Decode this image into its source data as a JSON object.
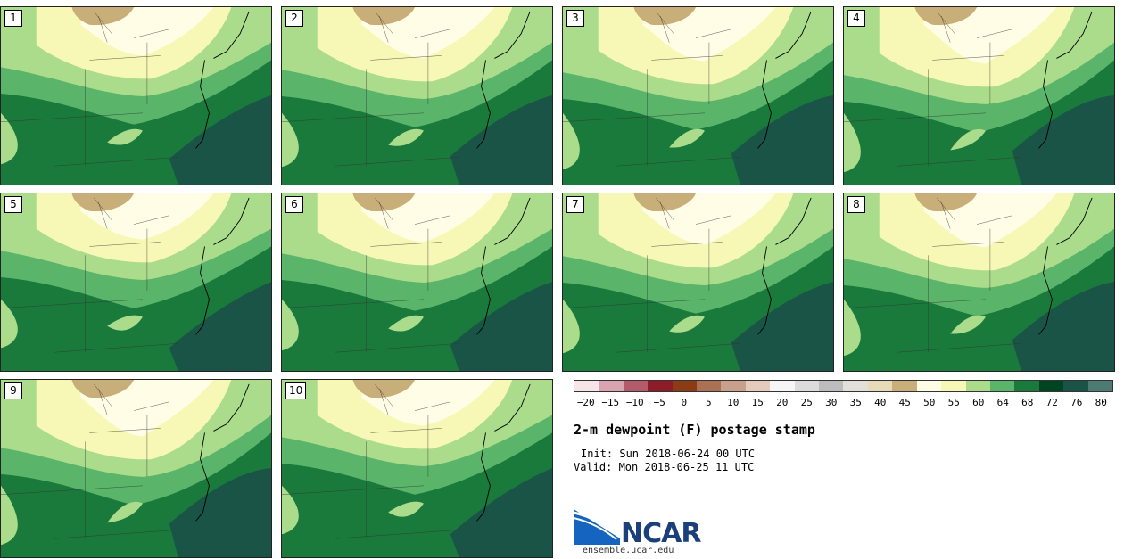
{
  "panels": [
    {
      "label": "1"
    },
    {
      "label": "2"
    },
    {
      "label": "3"
    },
    {
      "label": "4"
    },
    {
      "label": "5"
    },
    {
      "label": "6"
    },
    {
      "label": "7"
    },
    {
      "label": "8"
    },
    {
      "label": "9"
    },
    {
      "label": "10"
    }
  ],
  "colorbar": {
    "colors": [
      "#f6e6ea",
      "#d8a4b0",
      "#b45a6a",
      "#8c1c28",
      "#8c3c14",
      "#ac7054",
      "#c8a08c",
      "#e4cbbc",
      "#f6f6f6",
      "#dcdcdc",
      "#bcbcbc",
      "#e0e0d8",
      "#e6dab8",
      "#c8ae78",
      "#fffde6",
      "#f8f8b6",
      "#aadc8c",
      "#5ab46a",
      "#1a7a3c",
      "#004422",
      "#1a5446",
      "#4e7a72"
    ],
    "ticks": [
      "−20",
      "−15",
      "−10",
      "−5",
      "0",
      "5",
      "10",
      "15",
      "20",
      "25",
      "30",
      "35",
      "40",
      "45",
      "50",
      "55",
      "60",
      "64",
      "68",
      "72",
      "76",
      "80"
    ]
  },
  "title": "2-m dewpoint (F) postage stamp",
  "init": "Init: Sun 2018-06-24 00 UTC",
  "valid": "Valid: Mon 2018-06-25 11 UTC",
  "logo": {
    "text": "NCAR",
    "site": "ensemble.ucar.edu",
    "blue": "#1565c0",
    "navy": "#1a3f7a"
  }
}
